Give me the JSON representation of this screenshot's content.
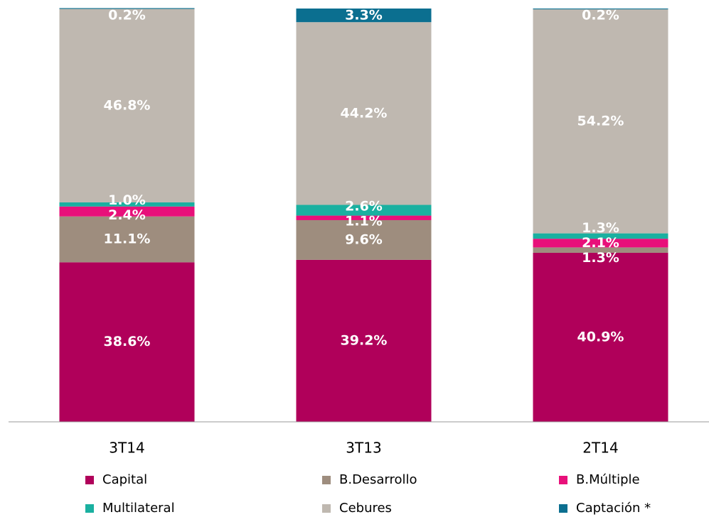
{
  "chart_data": {
    "type": "stacked_bar",
    "categories": [
      "3T14",
      "3T13",
      "2T14"
    ],
    "ylim": [
      0,
      100
    ],
    "series": [
      {
        "name": "Capital",
        "color": "#b0005a",
        "values": [
          38.6,
          39.2,
          40.9
        ],
        "value_labels": [
          "38.6%",
          "39.2%",
          "40.9%"
        ]
      },
      {
        "name": "B.Desarrollo",
        "color": "#9e8d7e",
        "values": [
          11.1,
          9.6,
          1.3
        ],
        "value_labels": [
          "11.1%",
          "9.6%",
          "1.3%"
        ]
      },
      {
        "name": "B.Múltiple",
        "color": "#e8107a",
        "values": [
          2.4,
          1.1,
          2.1
        ],
        "value_labels": [
          "2.4%",
          "1.1%",
          "2.1%"
        ]
      },
      {
        "name": "Multilateral",
        "color": "#1ab0a0",
        "values": [
          1.0,
          2.6,
          1.3
        ],
        "value_labels": [
          "1.0%",
          "2.6%",
          "1.3%"
        ]
      },
      {
        "name": "Cebures",
        "color": "#bfb8b0",
        "values": [
          46.8,
          44.2,
          54.2
        ],
        "value_labels": [
          "46.8%",
          "44.2%",
          "54.2%"
        ]
      },
      {
        "name": "Captación *",
        "color": "#0b6f90",
        "values": [
          0.2,
          3.3,
          0.2
        ],
        "value_labels": [
          "0.2%",
          "3.3%",
          "0.2%"
        ]
      }
    ],
    "legend": "bottom"
  }
}
